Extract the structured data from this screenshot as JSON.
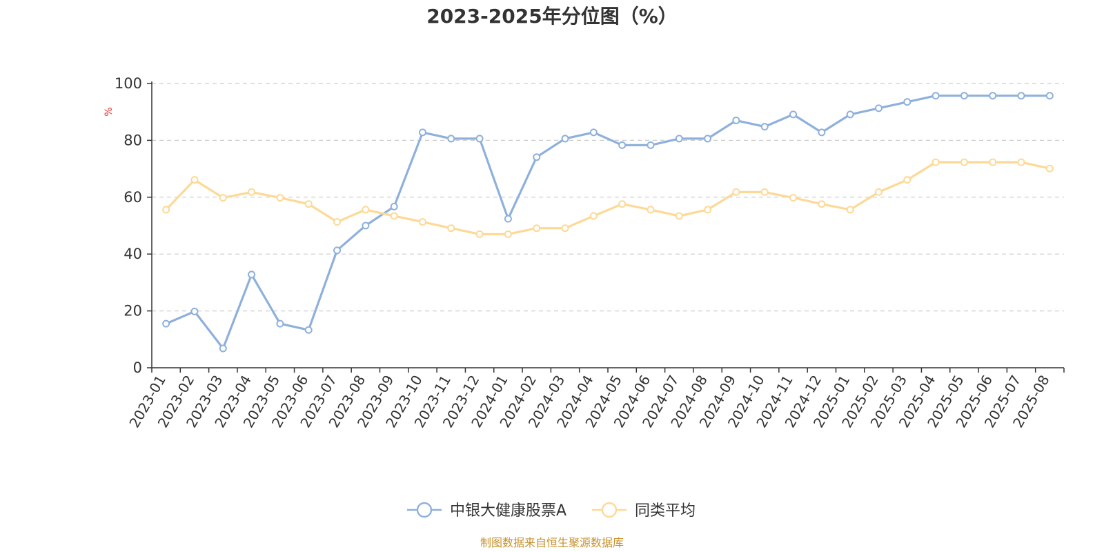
{
  "chart_data": {
    "type": "line",
    "title": "2023-2025年分位图（%）",
    "ylabel": "%",
    "ylim": [
      0,
      100
    ],
    "yticks": [
      "0",
      "20",
      "40",
      "60",
      "80",
      "100"
    ],
    "grid": true,
    "legend_position": "bottom",
    "categories": [
      "2023-01",
      "2023-02",
      "2023-03",
      "2023-04",
      "2023-05",
      "2023-06",
      "2023-07",
      "2023-08",
      "2023-09",
      "2023-10",
      "2023-11",
      "2023-12",
      "2024-01",
      "2024-02",
      "2024-03",
      "2024-04",
      "2024-05",
      "2024-06",
      "2024-07",
      "2024-08",
      "2024-09",
      "2024-10",
      "2024-11",
      "2024-12",
      "2025-01",
      "2025-02",
      "2025-03",
      "2025-04",
      "2025-05",
      "2025-06",
      "2025-07",
      "2025-08"
    ],
    "series": [
      {
        "name": "中银大健康股票A",
        "color": "#8eb0dc",
        "values": [
          15.5,
          19.8,
          6.8,
          32.8,
          15.5,
          13.3,
          41.3,
          50.0,
          56.7,
          82.8,
          80.6,
          80.6,
          52.4,
          74.1,
          80.6,
          82.8,
          78.3,
          78.3,
          80.6,
          80.6,
          87.0,
          84.8,
          89.1,
          82.8,
          89.1,
          91.3,
          93.5,
          95.7,
          95.7,
          95.7,
          95.7,
          95.7
        ]
      },
      {
        "name": "同类平均",
        "color": "#fdd995",
        "values": [
          55.6,
          66.1,
          59.8,
          61.8,
          59.8,
          57.6,
          51.3,
          55.6,
          53.4,
          51.3,
          49.1,
          47.0,
          47.0,
          49.1,
          49.1,
          53.4,
          57.6,
          55.6,
          53.4,
          55.6,
          61.8,
          61.8,
          59.8,
          57.6,
          55.6,
          61.8,
          66.1,
          72.3,
          72.3,
          72.3,
          72.3,
          70.1
        ]
      }
    ],
    "source": "制图数据来自恒生聚源数据库",
    "colors": {
      "ylabel": "#e8302a",
      "source": "#c8922c",
      "grid": "#cccccc",
      "axis": "#333333"
    }
  }
}
